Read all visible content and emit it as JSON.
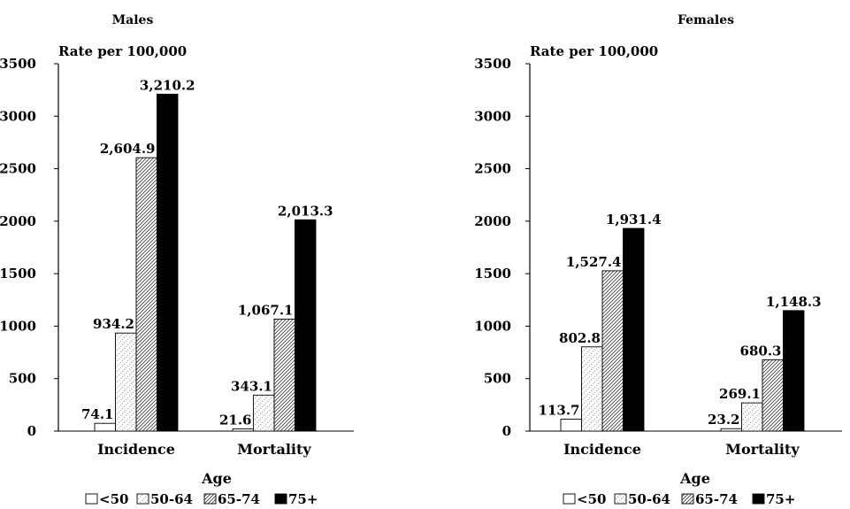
{
  "chart_data": [
    {
      "type": "bar",
      "title": "Males",
      "ylabel": "Rate per 100,000",
      "xlabel": "Age",
      "categories": [
        "Incidence",
        "Mortality"
      ],
      "ylim": [
        0,
        3500
      ],
      "yticks": [
        0,
        500,
        1000,
        1500,
        2000,
        2500,
        3000,
        3500
      ],
      "grid": false,
      "legend_position": "bottom",
      "series": [
        {
          "name": "<50",
          "values": [
            74.1,
            21.6
          ],
          "labels": [
            "74.1",
            "21.6"
          ],
          "fill": "white"
        },
        {
          "name": "50-64",
          "values": [
            934.2,
            343.1
          ],
          "labels": [
            "934.2",
            "343.1"
          ],
          "fill": "light-hatch"
        },
        {
          "name": "65-74",
          "values": [
            2604.9,
            1067.1
          ],
          "labels": [
            "2,604.9",
            "1,067.1"
          ],
          "fill": "dense-hatch"
        },
        {
          "name": "75+",
          "values": [
            3210.2,
            2013.3
          ],
          "labels": [
            "3,210.2",
            "2,013.3"
          ],
          "fill": "black"
        }
      ]
    },
    {
      "type": "bar",
      "title": "Females",
      "ylabel": "Rate per 100,000",
      "xlabel": "Age",
      "categories": [
        "Incidence",
        "Mortality"
      ],
      "ylim": [
        0,
        3500
      ],
      "yticks": [
        0,
        500,
        1000,
        1500,
        2000,
        2500,
        3000,
        3500
      ],
      "grid": false,
      "legend_position": "bottom",
      "series": [
        {
          "name": "<50",
          "values": [
            113.7,
            23.2
          ],
          "labels": [
            "113.7",
            "23.2"
          ],
          "fill": "white"
        },
        {
          "name": "50-64",
          "values": [
            802.8,
            269.1
          ],
          "labels": [
            "802.8",
            "269.1"
          ],
          "fill": "light-hatch"
        },
        {
          "name": "65-74",
          "values": [
            1527.4,
            680.3
          ],
          "labels": [
            "1,527.4",
            "680.3"
          ],
          "fill": "dense-hatch"
        },
        {
          "name": "75+",
          "values": [
            1931.4,
            1148.3
          ],
          "labels": [
            "1,931.4",
            "1,148.3"
          ],
          "fill": "black"
        }
      ]
    }
  ]
}
